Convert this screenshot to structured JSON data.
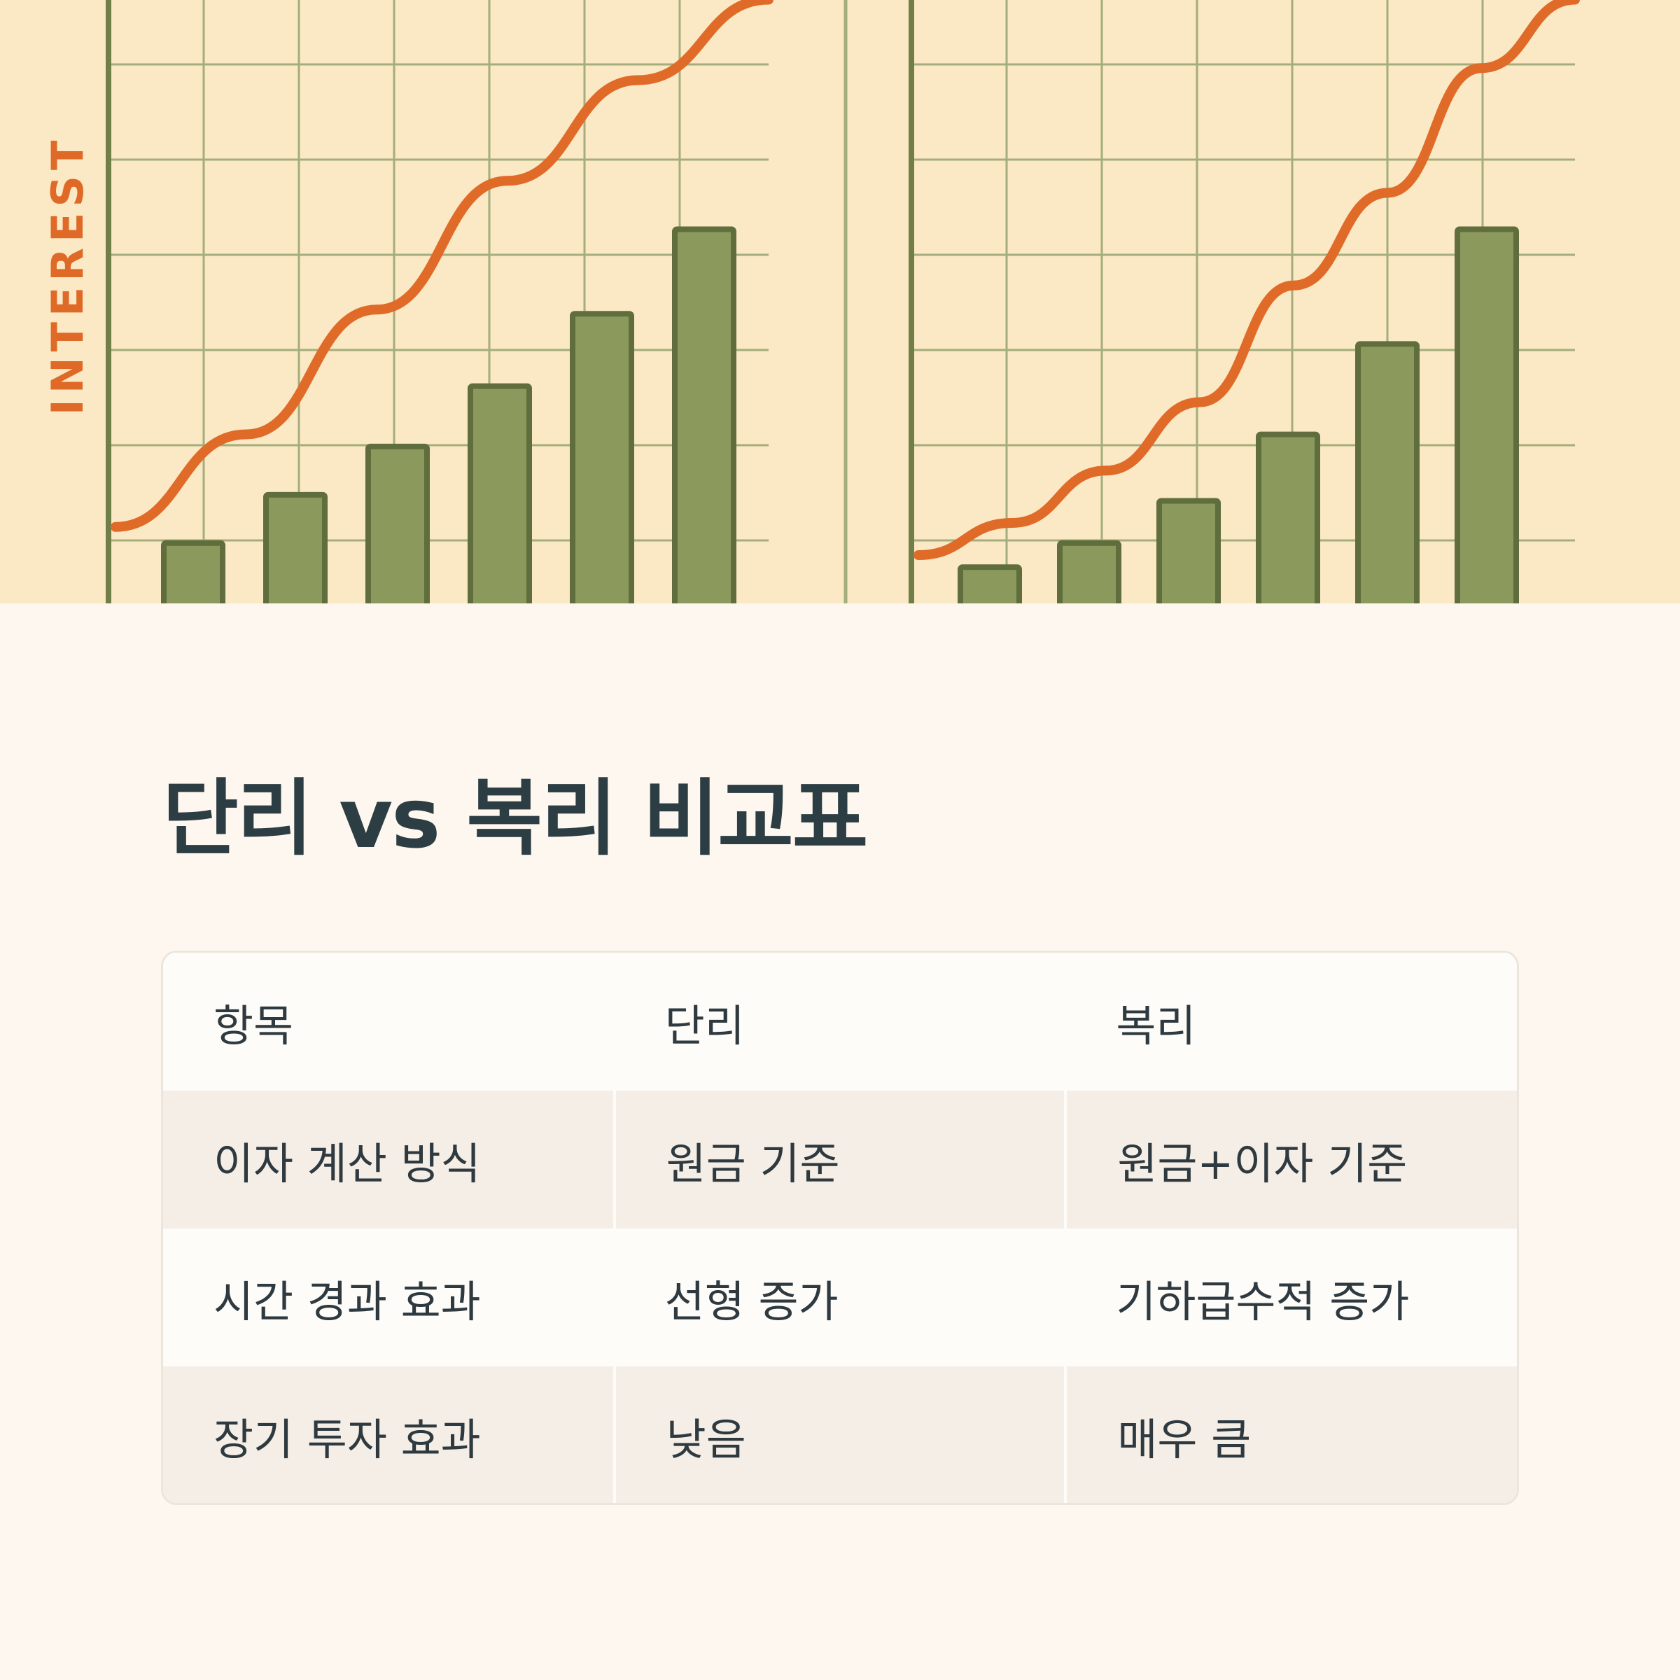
{
  "hero": {
    "axis_label": "INTEREST",
    "colors": {
      "paper": "#fbe8c4",
      "grid": "#a3ae7c",
      "axis": "#6f7f47",
      "bar_fill": "#8b9a5c",
      "bar_stroke": "#5f6e3c",
      "curve": "#e06a28",
      "label": "#df6a27"
    },
    "panels": [
      {
        "bars": [
          0.1,
          0.18,
          0.26,
          0.36,
          0.48,
          0.62
        ],
        "curve": [
          0.19,
          0.42,
          0.73,
          1.05,
          1.3,
          1.5
        ]
      },
      {
        "bars": [
          0.06,
          0.1,
          0.17,
          0.28,
          0.43,
          0.62
        ],
        "curve": [
          0.12,
          0.2,
          0.33,
          0.5,
          0.79,
          1.02,
          1.33,
          1.5
        ]
      }
    ]
  },
  "title": "단리 vs 복리 비교표",
  "table": {
    "headers": [
      "항목",
      "단리",
      "복리"
    ],
    "rows": [
      [
        "이자 계산 방식",
        "원금 기준",
        "원금+이자 기준"
      ],
      [
        "시간 경과 효과",
        "선형 증가",
        "기하급수적 증가"
      ],
      [
        "장기 투자 효과",
        "낮음",
        "매우 큼"
      ]
    ]
  }
}
